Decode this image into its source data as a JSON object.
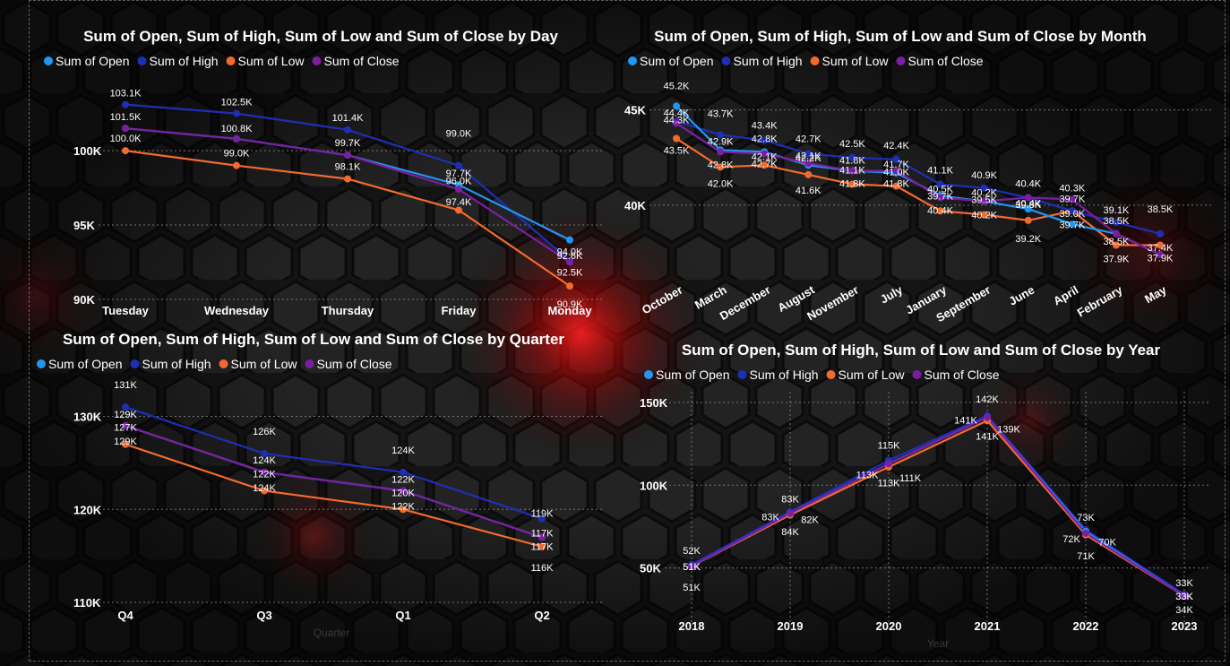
{
  "colors": {
    "open": "#2196F3",
    "high": "#1E2FB5",
    "low": "#F26A2E",
    "close": "#7B1FA2",
    "grid": "#8a8a8a",
    "text": "#ffffff",
    "background": "#141414",
    "glow": "#ff1a1a"
  },
  "chart_data": [
    {
      "id": "day",
      "type": "line",
      "title": "Sum of Open, Sum of High, Sum of Low and Sum of Close by Day",
      "xlabel": "",
      "ylabel": "",
      "legend_position": "top-left",
      "grid": true,
      "ylim": [
        90000,
        103500
      ],
      "yticks": [
        90000,
        95000,
        100000
      ],
      "ytick_labels": [
        "90K",
        "95K",
        "100K"
      ],
      "categories": [
        "Tuesday",
        "Wednesday",
        "Thursday",
        "Friday",
        "Monday"
      ],
      "series": [
        {
          "key": "open",
          "name": "Sum of Open",
          "values": [
            101500,
            100800,
            99700,
            97700,
            94000
          ],
          "labels": [
            "101.5K",
            "",
            "99.7K",
            "97.7K",
            "94.0K"
          ]
        },
        {
          "key": "high",
          "name": "Sum of High",
          "values": [
            103100,
            102500,
            101400,
            99000,
            92600
          ],
          "labels": [
            "103.1K",
            "102.5K",
            "101.4K",
            "99.0K",
            "92.6K"
          ]
        },
        {
          "key": "low",
          "name": "Sum of Low",
          "values": [
            100000,
            99000,
            98100,
            96000,
            90900
          ],
          "labels": [
            "100.0K",
            "99.0K",
            "98.1K",
            "96.0K",
            "90.9K"
          ]
        },
        {
          "key": "close",
          "name": "Sum of Close",
          "values": [
            101500,
            100800,
            99700,
            97400,
            92500
          ],
          "labels": [
            "",
            "100.8K",
            "",
            "97.4K",
            "92.5K"
          ]
        }
      ]
    },
    {
      "id": "month",
      "type": "line",
      "title": "Sum of Open, Sum of High, Sum of Low and Sum of Close by Month",
      "xlabel": "",
      "ylabel": "",
      "legend_position": "top-left",
      "grid": true,
      "ylim": [
        37500,
        45500
      ],
      "yticks": [
        40000,
        45000
      ],
      "ytick_labels": [
        "40K",
        "45K"
      ],
      "categories": [
        "October",
        "March",
        "December",
        "August",
        "November",
        "July",
        "January",
        "September",
        "June",
        "April",
        "February",
        "May"
      ],
      "series": [
        {
          "key": "open",
          "name": "Sum of Open",
          "values": [
            45200,
            42900,
            42800,
            42100,
            41800,
            41700,
            40500,
            40200,
            39800,
            39000,
            38500,
            37400
          ],
          "labels": [
            "45.2K",
            "42.9K",
            "42.8K",
            "42.1K",
            "41.8K",
            "41.7K",
            "40.5K",
            "40.2K",
            "39.8K",
            "39.0K",
            "38.5K",
            "37.4K"
          ]
        },
        {
          "key": "high",
          "name": "Sum of High",
          "values": [
            44400,
            43700,
            43400,
            42700,
            42500,
            42400,
            41100,
            40900,
            40400,
            39700,
            39100,
            38500
          ],
          "labels": [
            "44.4K",
            "43.7K",
            "43.4K",
            "42.7K",
            "42.5K",
            "42.4K",
            "41.1K",
            "40.9K",
            "40.4K",
            "39.7K",
            "39.1K",
            "38.5K"
          ]
        },
        {
          "key": "low",
          "name": "Sum of Low",
          "values": [
            43500,
            42000,
            42100,
            41600,
            41100,
            41000,
            39700,
            39500,
            39200,
            39700,
            37900,
            37900
          ],
          "labels": [
            "43.5K",
            "42.0K",
            "42.1K",
            "41.6K",
            "41.1K",
            "41.0K",
            "39.7K",
            "39.5K",
            "39.2K",
            "39.7K",
            "37.9K",
            "37.9K"
          ]
        },
        {
          "key": "close",
          "name": "Sum of Close",
          "values": [
            44300,
            42800,
            42700,
            42200,
            41800,
            41800,
            40400,
            40200,
            40400,
            40300,
            38500,
            37400
          ],
          "labels": [
            "44.3K",
            "42.8K",
            "42.7K",
            "42.2K",
            "41.8K",
            "41.8K",
            "40.4K",
            "40.2K",
            "40.4K",
            "40.3K",
            "38.5K",
            ""
          ]
        }
      ]
    },
    {
      "id": "quarter",
      "type": "line",
      "title": "Sum of Open, Sum of High, Sum of Low and Sum of Close by Quarter",
      "xlabel": "Quarter",
      "ylabel": "",
      "legend_position": "top-left",
      "grid": true,
      "ylim": [
        110000,
        131500
      ],
      "yticks": [
        110000,
        120000,
        130000
      ],
      "ytick_labels": [
        "110K",
        "120K",
        "130K"
      ],
      "categories": [
        "Q4",
        "Q3",
        "Q1",
        "Q2"
      ],
      "series": [
        {
          "key": "open",
          "name": "Sum of Open",
          "values": [
            129000,
            124000,
            122000,
            117000
          ],
          "labels": [
            "129K",
            "124K",
            "122K",
            "117K"
          ]
        },
        {
          "key": "high",
          "name": "Sum of High",
          "values": [
            131000,
            126000,
            124000,
            119000
          ],
          "labels": [
            "131K",
            "126K",
            "124K",
            "119K"
          ]
        },
        {
          "key": "low",
          "name": "Sum of Low",
          "values": [
            127000,
            122000,
            120000,
            116000
          ],
          "labels": [
            "127K",
            "122K",
            "120K",
            "116K"
          ]
        },
        {
          "key": "close",
          "name": "Sum of Close",
          "values": [
            129000,
            124000,
            122000,
            117000
          ],
          "labels": [
            "129K",
            "124K",
            "122K",
            "117K"
          ]
        }
      ]
    },
    {
      "id": "year",
      "type": "line",
      "title": "Sum of Open, Sum of High, Sum of Low and Sum of Close by Year",
      "xlabel": "Year",
      "ylabel": "",
      "legend_position": "top-left",
      "grid": true,
      "ylim": [
        20000,
        150000
      ],
      "yticks": [
        50000,
        100000,
        150000
      ],
      "ytick_labels": [
        "50K",
        "100K",
        "150K"
      ],
      "categories": [
        "2018",
        "2019",
        "2020",
        "2021",
        "2022",
        "2023"
      ],
      "series": [
        {
          "key": "open",
          "name": "Sum of Open",
          "values": [
            51000,
            83000,
            113000,
            141000,
            72000,
            33000
          ],
          "labels": [
            "51K",
            "83K",
            "113K",
            "141K",
            "72K",
            "33K"
          ]
        },
        {
          "key": "high",
          "name": "Sum of High",
          "values": [
            52000,
            84000,
            115000,
            142000,
            73000,
            34000
          ],
          "labels": [
            "52K",
            "84K",
            "115K",
            "142K",
            "73K",
            "34K"
          ]
        },
        {
          "key": "low",
          "name": "Sum of Low",
          "values": [
            51000,
            82000,
            111000,
            139000,
            70000,
            33000
          ],
          "labels": [
            "51K",
            "82K",
            "111K",
            "139K",
            "70K",
            "33K"
          ]
        },
        {
          "key": "close",
          "name": "Sum of Close",
          "values": [
            51000,
            83000,
            113000,
            141000,
            71000,
            33000
          ],
          "labels": [
            "51K",
            "83K",
            "113K",
            "141K",
            "71K",
            "33K"
          ]
        }
      ]
    }
  ]
}
